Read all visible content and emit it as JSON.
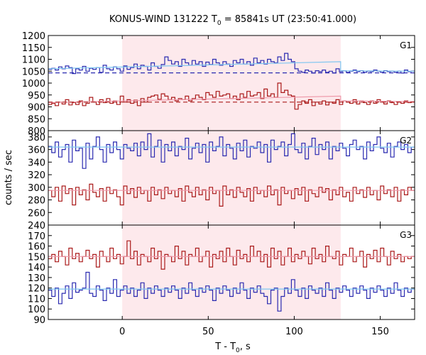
{
  "chart_data": {
    "type": "line",
    "title_prefix": "KONUS-WIND 131222 T",
    "title_sub": "0",
    "title_suffix": " = 85841s UT (23:50:41.000)",
    "xlabel_prefix": "T - T",
    "xlabel_sub": "0",
    "xlabel_suffix": ", s",
    "ylabel": "counts / sec",
    "xlim": [
      -43,
      170
    ],
    "xticks": [
      0,
      50,
      100,
      150
    ],
    "shaded_interval": [
      0,
      127
    ],
    "panels": [
      {
        "label": "G1",
        "ylim": [
          800,
          1200
        ],
        "yticks": [
          800,
          850,
          900,
          950,
          1000,
          1050,
          1100,
          1150,
          1200
        ],
        "series": [
          {
            "color": "#2a2ab0",
            "fit_color": "#7fc6f0",
            "background_level": 1043,
            "fit": [
              [
                -43,
                1060
              ],
              [
                127,
                1090
              ],
              [
                127,
                1052
              ],
              [
                170,
                1050
              ]
            ],
            "values": [
              1058,
              1062,
              1055,
              1068,
              1060,
              1072,
              1065,
              1040,
              1060,
              1055,
              1070,
              1050,
              1062,
              1058,
              1065,
              1045,
              1075,
              1060,
              1055,
              1068,
              1060,
              1050,
              1072,
              1058,
              1065,
              1080,
              1060,
              1075,
              1070,
              1055,
              1085,
              1070,
              1062,
              1078,
              1110,
              1095,
              1080,
              1090,
              1070,
              1100,
              1085,
              1075,
              1095,
              1080,
              1090,
              1070,
              1088,
              1078,
              1100,
              1085,
              1075,
              1090,
              1080,
              1070,
              1095,
              1085,
              1100,
              1080,
              1090,
              1075,
              1105,
              1085,
              1095,
              1080,
              1100,
              1090,
              1085,
              1110,
              1095,
              1125,
              1100,
              1090,
              1060,
              1050,
              1045,
              1055,
              1050,
              1042,
              1052,
              1048,
              1055,
              1045,
              1050,
              1042,
              1060,
              1048,
              1052,
              1045,
              1050,
              1055,
              1048,
              1052,
              1045,
              1050,
              1048,
              1055,
              1050,
              1045,
              1052,
              1048,
              1050,
              1045,
              1050,
              1042,
              1055,
              1048,
              1050
            ]
          },
          {
            "color": "#aa1a1a",
            "fit_color": "#ee99aa",
            "background_level": 920,
            "fit": [
              [
                -43,
                918
              ],
              [
                127,
                945
              ],
              [
                127,
                925
              ],
              [
                170,
                922
              ]
            ],
            "values": [
              910,
              915,
              905,
              920,
              912,
              930,
              908,
              918,
              910,
              925,
              905,
              915,
              940,
              920,
              910,
              930,
              918,
              935,
              915,
              925,
              910,
              945,
              920,
              930,
              915,
              928,
              905,
              935,
              920,
              940,
              945,
              950,
              932,
              955,
              945,
              930,
              940,
              925,
              935,
              930,
              945,
              925,
              935,
              950,
              940,
              930,
              960,
              950,
              940,
              965,
              945,
              950,
              955,
              935,
              945,
              930,
              955,
              940,
              965,
              945,
              950,
              960,
              935,
              975,
              945,
              955,
              940,
              1000,
              960,
              970,
              950,
              945,
              890,
              910,
              925,
              915,
              930,
              905,
              920,
              912,
              925,
              908,
              920,
              915,
              930,
              910,
              925,
              920,
              915,
              930,
              912,
              925,
              918,
              910,
              925,
              915,
              930,
              920,
              912,
              925,
              918,
              910,
              920,
              915,
              925,
              918,
              922
            ]
          }
        ]
      },
      {
        "label": "G2",
        "ylim": [
          240,
          390
        ],
        "yticks": [
          240,
          260,
          280,
          300,
          320,
          340,
          360,
          380
        ],
        "series": [
          {
            "color": "#2a2ab0",
            "fit_color": "#7fc6f0",
            "background_level": null,
            "fit": [
              [
                -43,
                364
              ],
              [
                170,
                364
              ]
            ],
            "values": [
              365,
              355,
              372,
              348,
              360,
              368,
              340,
              375,
              358,
              362,
              330,
              370,
              345,
              365,
              380,
              360,
              340,
              368,
              355,
              372,
              360,
              345,
              368,
              362,
              358,
              370,
              350,
              372,
              360,
              385,
              348,
              365,
              375,
              340,
              368,
              358,
              372,
              350,
              365,
              360,
              378,
              345,
              362,
              370,
              355,
              368,
              340,
              372,
              358,
              365,
              380,
              350,
              368,
              362,
              345,
              370,
              358,
              375,
              348,
              365,
              362,
              372,
              355,
              368,
              340,
              375,
              360,
              365,
              372,
              350,
              368,
              385,
              360,
              355,
              370,
              345,
              365,
              378,
              352,
              368,
              360,
              372,
              345,
              365,
              358,
              370,
              362,
              350,
              368,
              375,
              360,
              365,
              345,
              372,
              358,
              368,
              380,
              362,
              355,
              370,
              348,
              365,
              372,
              360,
              368,
              355,
              364
            ]
          },
          {
            "color": "#aa1a1a",
            "fit_color": "#ee99aa",
            "background_level": null,
            "fit": [
              [
                -43,
                295
              ],
              [
                170,
                295
              ]
            ],
            "values": [
              295,
              285,
              300,
              278,
              302,
              290,
              298,
              272,
              300,
              288,
              296,
              280,
              305,
              292,
              285,
              298,
              278,
              300,
              290,
              296,
              285,
              272,
              302,
              290,
              298,
              284,
              300,
              290,
              295,
              278,
              300,
              288,
              296,
              282,
              300,
              290,
              295,
              285,
              298,
              278,
              302,
              292,
              285,
              300,
              288,
              296,
              280,
              300,
              290,
              295,
              270,
              302,
              288,
              296,
              284,
              300,
              292,
              285,
              298,
              278,
              300,
              290,
              295,
              285,
              302,
              288,
              296,
              272,
              300,
              290,
              295,
              282,
              298,
              288,
              300,
              278,
              296,
              290,
              285,
              300,
              292,
              298,
              280,
              296,
              288,
              300,
              285,
              292,
              278,
              300,
              290,
              296,
              284,
              300,
              288,
              295,
              280,
              302,
              290,
              296,
              285,
              300,
              278,
              296,
              288,
              300,
              295
            ]
          }
        ]
      },
      {
        "label": "G3",
        "ylim": [
          90,
          180
        ],
        "yticks": [
          90,
          100,
          110,
          120,
          130,
          140,
          150,
          160,
          170
        ],
        "series": [
          {
            "color": "#aa1a1a",
            "fit_color": "#ee99aa",
            "background_level": null,
            "fit": [
              [
                -43,
                150
              ],
              [
                170,
                150
              ]
            ],
            "values": [
              148,
              152,
              145,
              155,
              150,
              142,
              158,
              148,
              153,
              145,
              150,
              156,
              148,
              152,
              140,
              155,
              150,
              145,
              158,
              148,
              152,
              143,
              150,
              165,
              148,
              155,
              142,
              152,
              150,
              145,
              158,
              148,
              155,
              138,
              152,
              150,
              145,
              160,
              148,
              155,
              142,
              152,
              150,
              158,
              145,
              150,
              155,
              140,
              152,
              148,
              155,
              145,
              158,
              150,
              142,
              156,
              148,
              152,
              145,
              160,
              150,
              155,
              145,
              152,
              140,
              158,
              148,
              155,
              142,
              150,
              158,
              145,
              152,
              148,
              155,
              150,
              143,
              158,
              148,
              152,
              145,
              160,
              150,
              148,
              155,
              142,
              152,
              150,
              158,
              145,
              150,
              155,
              140,
              152,
              148,
              156,
              145,
              158,
              150,
              142,
              155,
              148,
              152,
              145,
              150,
              148,
              150
            ]
          },
          {
            "color": "#2a2ab0",
            "fit_color": "#7fc6f0",
            "background_level": null,
            "fit": [
              [
                -43,
                119
              ],
              [
                170,
                119
              ]
            ],
            "values": [
              118,
              112,
              120,
              105,
              115,
              122,
              110,
              125,
              116,
              118,
              120,
              135,
              115,
              112,
              122,
              118,
              108,
              120,
              115,
              128,
              112,
              118,
              122,
              115,
              120,
              112,
              118,
              125,
              110,
              120,
              115,
              122,
              118,
              112,
              120,
              116,
              122,
              118,
              110,
              120,
              115,
              125,
              118,
              112,
              120,
              116,
              122,
              118,
              108,
              120,
              115,
              122,
              118,
              112,
              120,
              115,
              125,
              118,
              110,
              120,
              116,
              122,
              115,
              112,
              105,
              118,
              120,
              98,
              112,
              120,
              115,
              128,
              118,
              112,
              120,
              110,
              122,
              118,
              115,
              120,
              112,
              125,
              118,
              110,
              120,
              116,
              122,
              118,
              112,
              120,
              115,
              122,
              118,
              110,
              120,
              116,
              122,
              118,
              112,
              120,
              115,
              125,
              118,
              112,
              120,
              116,
              119
            ]
          }
        ]
      }
    ]
  }
}
